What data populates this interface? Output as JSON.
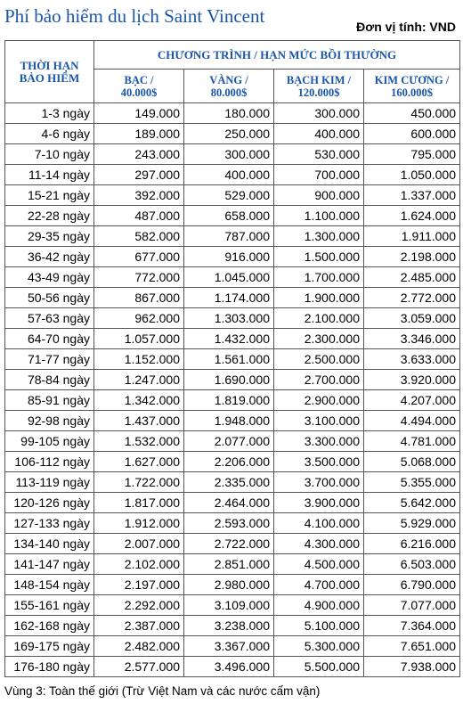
{
  "title": "Phí bảo hiểm du lịch Saint Vincent",
  "unit_label": "Đơn vị tính: VND",
  "table": {
    "period_header": [
      "THỜI HẠN",
      "BẢO HIỂM"
    ],
    "group_header": "CHƯƠNG TRÌNH / HẠN MỨC BỒI THƯỜNG",
    "plans": [
      {
        "name": "BẠC /",
        "limit": "40.000$"
      },
      {
        "name": "VÀNG /",
        "limit": "80.000$"
      },
      {
        "name": "BẠCH KIM /",
        "limit": "120.000$"
      },
      {
        "name": "KIM CƯƠNG /",
        "limit": "160.000$"
      }
    ],
    "rows": [
      {
        "period": "1-3 ngày",
        "values": [
          "149.000",
          "180.000",
          "300.000",
          "450.000"
        ]
      },
      {
        "period": "4-6 ngày",
        "values": [
          "189.000",
          "250.000",
          "400.000",
          "600.000"
        ]
      },
      {
        "period": "7-10 ngày",
        "values": [
          "243.000",
          "300.000",
          "530.000",
          "795.000"
        ]
      },
      {
        "period": "11-14 ngày",
        "values": [
          "297.000",
          "400.000",
          "700.000",
          "1.050.000"
        ]
      },
      {
        "period": "15-21 ngày",
        "values": [
          "392.000",
          "529.000",
          "900.000",
          "1.337.000"
        ]
      },
      {
        "period": "22-28 ngày",
        "values": [
          "487.000",
          "658.000",
          "1.100.000",
          "1.624.000"
        ]
      },
      {
        "period": "29-35 ngày",
        "values": [
          "582.000",
          "787.000",
          "1.300.000",
          "1.911.000"
        ]
      },
      {
        "period": "36-42 ngày",
        "values": [
          "677.000",
          "916.000",
          "1.500.000",
          "2.198.000"
        ]
      },
      {
        "period": "43-49 ngày",
        "values": [
          "772.000",
          "1.045.000",
          "1.700.000",
          "2.485.000"
        ]
      },
      {
        "period": "50-56 ngày",
        "values": [
          "867.000",
          "1.174.000",
          "1.900.000",
          "2.772.000"
        ]
      },
      {
        "period": "57-63 ngày",
        "values": [
          "962.000",
          "1.303.000",
          "2.100.000",
          "3.059.000"
        ]
      },
      {
        "period": "64-70 ngày",
        "values": [
          "1.057.000",
          "1.432.000",
          "2.300.000",
          "3.346.000"
        ]
      },
      {
        "period": "71-77 ngày",
        "values": [
          "1.152.000",
          "1.561.000",
          "2.500.000",
          "3.633.000"
        ]
      },
      {
        "period": "78-84 ngày",
        "values": [
          "1.247.000",
          "1.690.000",
          "2.700.000",
          "3.920.000"
        ]
      },
      {
        "period": "85-91 ngày",
        "values": [
          "1.342.000",
          "1.819.000",
          "2.900.000",
          "4.207.000"
        ]
      },
      {
        "period": "92-98 ngày",
        "values": [
          "1.437.000",
          "1.948.000",
          "3.100.000",
          "4.494.000"
        ]
      },
      {
        "period": "99-105 ngày",
        "values": [
          "1.532.000",
          "2.077.000",
          "3.300.000",
          "4.781.000"
        ]
      },
      {
        "period": "106-112 ngày",
        "values": [
          "1.627.000",
          "2.206.000",
          "3.500.000",
          "5.068.000"
        ]
      },
      {
        "period": "113-119 ngày",
        "values": [
          "1.722.000",
          "2.335.000",
          "3.700.000",
          "5.355.000"
        ]
      },
      {
        "period": "120-126 ngày",
        "values": [
          "1.817.000",
          "2.464.000",
          "3.900.000",
          "5.642.000"
        ]
      },
      {
        "period": "127-133 ngày",
        "values": [
          "1.912.000",
          "2.593.000",
          "4.100.000",
          "5.929.000"
        ]
      },
      {
        "period": "134-140 ngày",
        "values": [
          "2.007.000",
          "2.722.000",
          "4.300.000",
          "6.216.000"
        ]
      },
      {
        "period": "141-147 ngày",
        "values": [
          "2.102.000",
          "2.851.000",
          "4.500.000",
          "6.503.000"
        ]
      },
      {
        "period": "148-154 ngày",
        "values": [
          "2.197.000",
          "2.980.000",
          "4.700.000",
          "6.790.000"
        ]
      },
      {
        "period": "155-161 ngày",
        "values": [
          "2.292.000",
          "3.109.000",
          "4.900.000",
          "7.077.000"
        ]
      },
      {
        "period": "162-168 ngày",
        "values": [
          "2.387.000",
          "3.238.000",
          "5.100.000",
          "7.364.000"
        ]
      },
      {
        "period": "169-175 ngày",
        "values": [
          "2.482.000",
          "3.367.000",
          "5.300.000",
          "7.651.000"
        ]
      },
      {
        "period": "176-180 ngày",
        "values": [
          "2.577.000",
          "3.496.000",
          "5.500.000",
          "7.938.000"
        ]
      }
    ]
  },
  "footer": "Vùng 3: Toàn thế giới (Trừ Việt Nam và các nước cấm vận)"
}
